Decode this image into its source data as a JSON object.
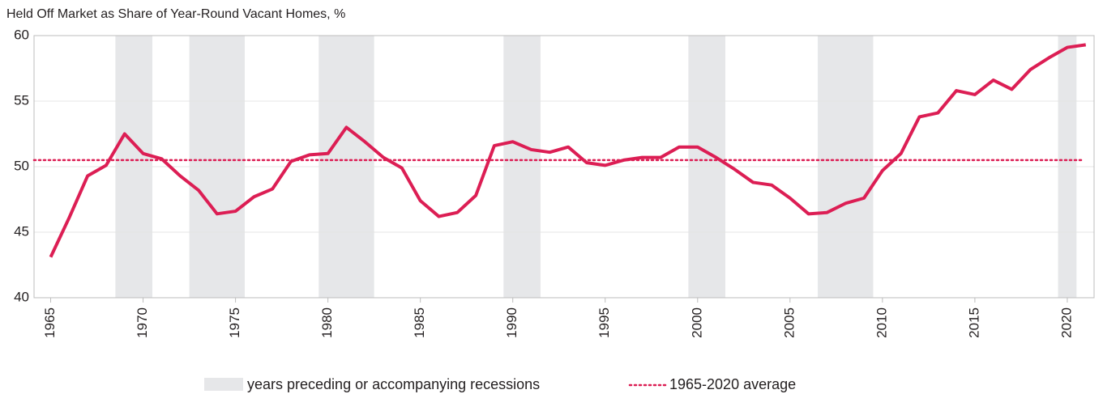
{
  "chart_data": {
    "type": "line",
    "title": "Held Off Market as Share of Year-Round Vacant Homes, %",
    "x": [
      1965,
      1966,
      1967,
      1968,
      1969,
      1970,
      1971,
      1972,
      1973,
      1974,
      1975,
      1976,
      1977,
      1978,
      1979,
      1980,
      1981,
      1982,
      1983,
      1984,
      1985,
      1986,
      1987,
      1988,
      1989,
      1990,
      1991,
      1992,
      1993,
      1994,
      1995,
      1996,
      1997,
      1998,
      1999,
      2000,
      2001,
      2002,
      2003,
      2004,
      2005,
      2006,
      2007,
      2008,
      2009,
      2010,
      2011,
      2012,
      2013,
      2014,
      2015,
      2016,
      2017,
      2018,
      2019,
      2020,
      2021
    ],
    "series": [
      {
        "name": "Held Off Market",
        "color": "#dc1e54",
        "values": [
          43.1,
          46.1,
          49.3,
          50.1,
          52.5,
          51.0,
          50.6,
          49.3,
          48.2,
          46.4,
          46.6,
          47.7,
          48.3,
          50.4,
          50.9,
          51.0,
          53.0,
          51.9,
          50.7,
          49.9,
          47.4,
          46.2,
          46.5,
          47.8,
          51.6,
          51.9,
          51.3,
          51.1,
          51.5,
          50.3,
          50.1,
          50.5,
          50.7,
          50.7,
          51.5,
          51.5,
          50.7,
          49.8,
          48.8,
          48.6,
          47.6,
          46.4,
          46.5,
          47.2,
          47.6,
          49.7,
          51.0,
          53.8,
          54.1,
          55.8,
          55.5,
          56.6,
          55.9,
          57.4,
          58.3,
          59.1,
          59.3
        ]
      }
    ],
    "average": {
      "value": 50.5,
      "label": "1965-2020 average",
      "color": "#dc1e54"
    },
    "recessions": [
      [
        1968.5,
        1970.5
      ],
      [
        1972.5,
        1975.5
      ],
      [
        1979.5,
        1982.5
      ],
      [
        1989.5,
        1991.5
      ],
      [
        1999.5,
        2001.5
      ],
      [
        2006.5,
        2009.5
      ],
      [
        2019.5,
        2020.5
      ]
    ],
    "recession_label": "years preceding or accompanying recessions",
    "recession_color": "#e6e7e9",
    "xlim": [
      1964.1,
      2021.45
    ],
    "ylim": [
      40,
      60
    ],
    "xticks": [
      1965,
      1970,
      1975,
      1980,
      1985,
      1990,
      1995,
      2000,
      2005,
      2010,
      2015,
      2020
    ],
    "yticks": [
      40,
      45,
      50,
      55,
      60
    ],
    "grid": true
  }
}
